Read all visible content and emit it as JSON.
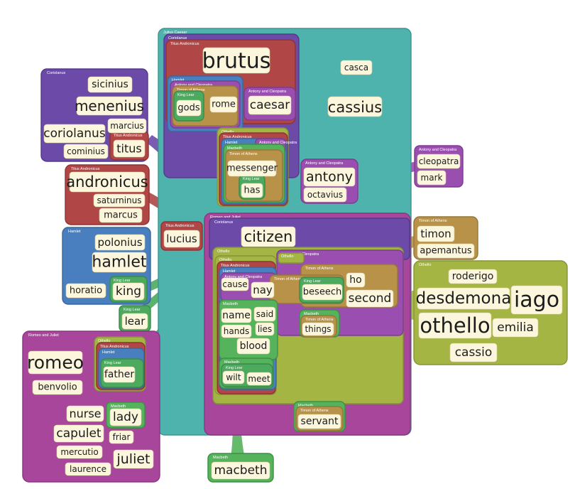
{
  "colors": {
    "julius_caesar": "#4fb3ad",
    "coriolanus": "#6b4aa8",
    "titus_andronicus": "#b04646",
    "hamlet": "#4a7fbf",
    "antony_cleopatra": "#9a4fb0",
    "king_lear": "#4caa5e",
    "timon": "#b89248",
    "othello": "#a4b543",
    "macbeth": "#55b35b",
    "romeo_juliet": "#a8469c"
  },
  "regions": {
    "julius_caesar": "Julius Caesar",
    "coriolanus_main": "Coriolanus",
    "titus_main": "Titus Andronicus",
    "hamlet_inner": "Hamlet",
    "ac_inner": "Antony and Cleopatra",
    "timon_inner": "Timon of Athens",
    "lear_gods": "King Lear",
    "ac_caesar": "Antony and Cleopatra",
    "coriolanus_left": "Coriolanus",
    "titus_titus": "Titus Andronicus",
    "titus_left": "Titus Andronicus",
    "hamlet_left": "Hamlet",
    "lear_king": "King Lear",
    "lear_lear": "King Lear",
    "ac_right": "Antony and Cleopatra",
    "ac_antony": "Antony and Cleopatra",
    "timon_right": "Timon of Athens",
    "othello_right": "Othello",
    "romeo_left": "Romeo and Juliet",
    "othello_father": "Othello",
    "titus_father": "Titus Andronicus",
    "hamlet_father": "Hamlet",
    "lear_father": "King Lear",
    "macbeth_lady": "Macbeth",
    "macbeth_bottom": "Macbeth",
    "othello_mid": "Othello",
    "titus_mid": "Titus Andronicus",
    "hamlet_mid": "Hamlet",
    "macbeth_mid": "Macbeth",
    "timon_mid": "Timon of Athens",
    "lear_has": "King Lear",
    "ac_mid": "Antony and Cleopatra",
    "romeo_center": "Romeo and Juliet",
    "coriolanus_center": "Coriolanus",
    "titus_lucius": "Titus Andronicus",
    "othello_center": "Othello",
    "othello_cause": "Othello",
    "titus_cause": "Titus Andronicus",
    "hamlet_cause": "Hamlet",
    "ac_cause": "Antony and Cleopatra",
    "othello_lower": "Othello",
    "ac_lower": "Antony and Cleopatra",
    "timon_lower": "Timon of Athens",
    "lear_beseech": "King Lear",
    "timon_beseech": "Timon of Athens",
    "macbeth_name": "Macbeth",
    "macbeth_things": "Macbeth",
    "timon_things": "Timon of Athens",
    "macbeth_wilt": "Macbeth",
    "lear_wilt": "King Lear",
    "macbeth_servant": "Macbeth",
    "timon_servant": "Timon of Athens",
    "macbeth_macbeth": "Macbeth"
  },
  "words": {
    "brutus": "brutus",
    "casca": "casca",
    "cassius": "cassius",
    "gods": "gods",
    "rome": "rome",
    "caesar": "caesar",
    "sicinius": "sicinius",
    "menenius": "menenius",
    "coriolanus": "coriolanus",
    "marcius": "marcius",
    "cominius": "cominius",
    "titus": "titus",
    "andronicus": "andronicus",
    "saturninus": "saturninus",
    "marcus": "marcus",
    "messenger": "messenger",
    "has": "has",
    "antony": "antony",
    "octavius": "octavius",
    "cleopatra": "cleopatra",
    "mark": "mark",
    "polonius": "polonius",
    "hamlet": "hamlet",
    "horatio": "horatio",
    "king": "king",
    "lucius": "lucius",
    "citizen": "citizen",
    "timon": "timon",
    "apemantus": "apemantus",
    "roderigo": "roderigo",
    "desdemona": "desdemona",
    "iago": "iago",
    "othello": "othello",
    "emilia": "emilia",
    "cassio": "cassio",
    "lear": "lear",
    "cause": "cause",
    "nay": "nay",
    "beseech": "beseech",
    "ho": "ho",
    "second": "second",
    "name": "name",
    "said": "said",
    "hands": "hands",
    "lies": "lies",
    "blood": "blood",
    "things": "things",
    "romeo": "romeo",
    "benvolio": "benvolio",
    "father": "father",
    "wilt": "wilt",
    "meet": "meet",
    "nurse": "nurse",
    "lady": "lady",
    "capulet": "capulet",
    "friar": "friar",
    "mercutio": "mercutio",
    "juliet": "juliet",
    "laurence": "laurence",
    "servant": "servant",
    "macbeth": "macbeth"
  }
}
